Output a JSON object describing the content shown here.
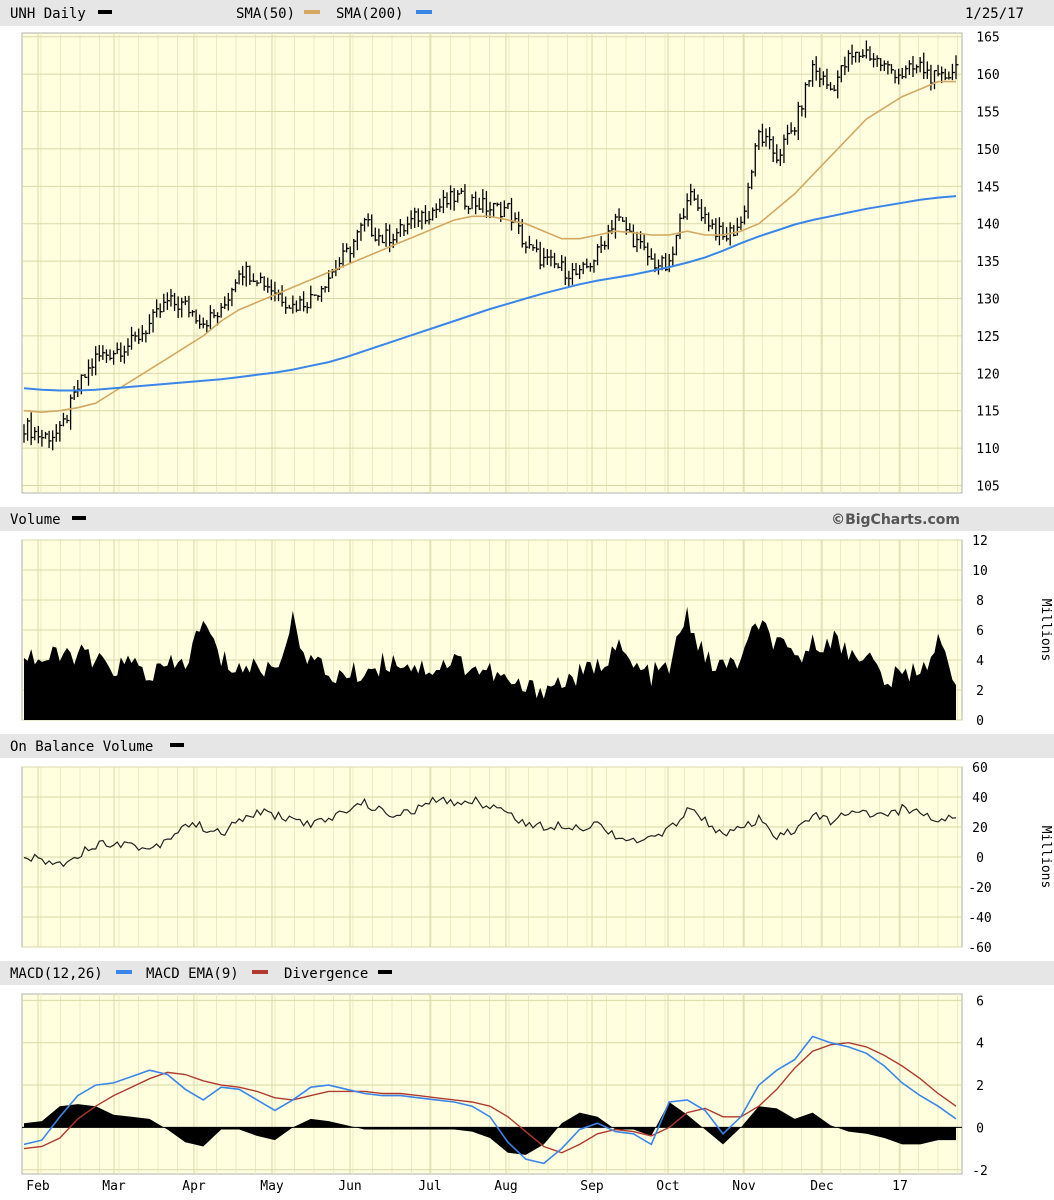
{
  "header": {
    "ticker_label": "UNH Daily",
    "sma50_label": "SMA(50)",
    "sma200_label": "SMA(200)",
    "date": "1/25/17",
    "copyright": "©BigCharts.com",
    "volume_label": "Volume",
    "obv_label": "On Balance Volume",
    "macd_label": "MACD(12,26)",
    "macd_ema_label": "MACD EMA(9)",
    "divergence_label": "Divergence",
    "units_label": "Millions"
  },
  "colors": {
    "panel_bg": "#ffffe0",
    "grid": "#d8d8a8",
    "header_bg": "#e6e6e6",
    "price": "#000000",
    "sma50": "#d4a860",
    "sma200": "#3a86e8",
    "macd": "#3a86e8",
    "macd_ema": "#b03a2e"
  },
  "chart_data": [
    {
      "type": "ohlc",
      "name": "price",
      "x_tick_labels": [
        "Feb",
        "Mar",
        "Apr",
        "May",
        "Jun",
        "Jul",
        "Aug",
        "Sep",
        "Oct",
        "Nov",
        "Dec",
        "17"
      ],
      "y_ticks": [
        105,
        110,
        115,
        120,
        125,
        130,
        135,
        140,
        145,
        150,
        155,
        160,
        165
      ],
      "ylim": [
        104,
        165.5
      ],
      "grid": true,
      "closes_weekly": [
        113,
        111.5,
        112,
        118,
        122,
        123,
        124,
        126.5,
        129.5,
        129,
        127,
        128,
        134,
        133,
        131,
        129,
        130,
        133,
        136,
        140,
        138,
        139,
        141,
        142,
        143.5,
        143,
        142,
        142,
        137,
        135,
        134,
        133,
        136,
        141,
        138,
        135,
        134,
        144,
        141,
        138,
        140,
        152,
        149,
        153,
        161,
        158,
        162,
        163,
        161,
        160,
        161,
        159,
        161
      ]
    },
    {
      "type": "line",
      "name": "sma50",
      "values_weekly": [
        115,
        114.8,
        115,
        115.4,
        116,
        117.5,
        119,
        120.5,
        122,
        123.5,
        125,
        127,
        128.5,
        129.5,
        130.5,
        131.5,
        132.5,
        133.5,
        134.5,
        135.5,
        136.5,
        137.5,
        138.5,
        139.5,
        140.5,
        141,
        141,
        140.5,
        140,
        139,
        138,
        138,
        138.5,
        139,
        138.8,
        138.5,
        138.5,
        139,
        138.5,
        138.5,
        139,
        140,
        142,
        144,
        146.5,
        149,
        151.5,
        154,
        155.5,
        157,
        158,
        159,
        159
      ]
    },
    {
      "type": "line",
      "name": "sma200",
      "values_weekly": [
        118,
        117.8,
        117.7,
        117.7,
        117.8,
        118,
        118.2,
        118.4,
        118.6,
        118.8,
        119,
        119.2,
        119.5,
        119.8,
        120.1,
        120.5,
        121,
        121.5,
        122.2,
        123,
        123.8,
        124.6,
        125.4,
        126.2,
        127,
        127.8,
        128.6,
        129.3,
        130,
        130.7,
        131.3,
        131.9,
        132.4,
        132.8,
        133.2,
        133.7,
        134.2,
        134.8,
        135.5,
        136.4,
        137.4,
        138.3,
        139.1,
        139.9,
        140.5,
        141,
        141.5,
        142,
        142.4,
        142.8,
        143.2,
        143.5,
        143.7
      ]
    },
    {
      "type": "area",
      "name": "volume",
      "unit": "Millions",
      "y_ticks": [
        0,
        2,
        4,
        6,
        8,
        10,
        12
      ],
      "ylim": [
        0,
        12
      ],
      "values_weekly": [
        4.5,
        4,
        4.2,
        4.5,
        3.8,
        3.5,
        3.8,
        3,
        3.5,
        3.8,
        6.5,
        4,
        3.5,
        3.5,
        3.5,
        6.5,
        4,
        3,
        3,
        3.2,
        3.8,
        4,
        3.5,
        3.5,
        4,
        3.5,
        3.2,
        2.5,
        2,
        2.2,
        2.5,
        3,
        3.5,
        5,
        3.5,
        3,
        3.5,
        7,
        4,
        3.5,
        4,
        6.5,
        5,
        4,
        5,
        5.5,
        4.5,
        4.5,
        2.5,
        3,
        3.5,
        5,
        3
      ]
    },
    {
      "type": "line",
      "name": "obv",
      "unit": "Millions",
      "y_ticks": [
        60,
        40,
        20,
        0,
        -20,
        -40,
        -60
      ],
      "ylim": [
        -60,
        60
      ],
      "values_weekly": [
        0,
        -2,
        -5,
        2,
        8,
        10,
        8,
        5,
        12,
        22,
        20,
        15,
        24,
        30,
        28,
        25,
        22,
        24,
        32,
        36,
        30,
        28,
        32,
        38,
        36,
        38,
        34,
        30,
        22,
        20,
        22,
        20,
        22,
        15,
        10,
        12,
        18,
        32,
        25,
        15,
        18,
        25,
        12,
        18,
        28,
        24,
        28,
        30,
        26,
        32,
        30,
        24,
        28
      ]
    },
    {
      "type": "line",
      "name": "macd",
      "y_ticks": [
        6,
        4,
        2,
        0,
        -2
      ],
      "ylim": [
        -2.2,
        6.3
      ],
      "values_weekly": [
        -0.8,
        -0.6,
        0.5,
        1.5,
        2,
        2.1,
        2.4,
        2.7,
        2.5,
        1.8,
        1.3,
        1.9,
        1.8,
        1.3,
        0.8,
        1.3,
        1.9,
        2,
        1.8,
        1.6,
        1.5,
        1.5,
        1.4,
        1.3,
        1.2,
        1,
        0.5,
        -0.7,
        -1.5,
        -1.7,
        -1,
        -0.1,
        0.2,
        -0.2,
        -0.3,
        -0.8,
        1.2,
        1.3,
        0.8,
        -0.3,
        0.5,
        2,
        2.7,
        3.2,
        4.3,
        4,
        3.8,
        3.5,
        2.9,
        2.1,
        1.5,
        1,
        0.4
      ]
    },
    {
      "type": "line",
      "name": "macd_ema",
      "values_weekly": [
        -1,
        -0.9,
        -0.5,
        0.4,
        1,
        1.5,
        1.9,
        2.3,
        2.6,
        2.5,
        2.2,
        2,
        1.9,
        1.7,
        1.4,
        1.3,
        1.5,
        1.7,
        1.7,
        1.7,
        1.6,
        1.6,
        1.5,
        1.4,
        1.3,
        1.2,
        1,
        0.5,
        -0.2,
        -0.9,
        -1.2,
        -0.8,
        -0.3,
        -0.1,
        -0.2,
        -0.4,
        0,
        0.7,
        0.9,
        0.5,
        0.5,
        1,
        1.8,
        2.8,
        3.6,
        3.9,
        4,
        3.8,
        3.4,
        2.9,
        2.3,
        1.6,
        1
      ]
    }
  ]
}
